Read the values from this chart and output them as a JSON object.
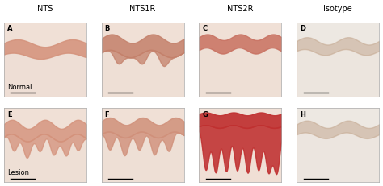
{
  "col_labels": [
    "NTS",
    "NTS1R",
    "NTS2R",
    "Isotype"
  ],
  "row_labels": [
    "Normal",
    "Lesion"
  ],
  "panel_letters": [
    [
      "A",
      "B",
      "C",
      "D"
    ],
    [
      "E",
      "F",
      "G",
      "H"
    ]
  ],
  "bg_color": "#ffffff",
  "stain_colors": {
    "A": {
      "bg": "#f0e0d6",
      "tissue": "#d4917a",
      "dermis": "#ecddd4"
    },
    "B": {
      "bg": "#f0e0d6",
      "tissue": "#c4806a",
      "dermis": "#ecddd4"
    },
    "C": {
      "bg": "#f0e0d6",
      "tissue": "#c87060",
      "dermis": "#ecddd4"
    },
    "D": {
      "bg": "#ede8e2",
      "tissue": "#c4a890",
      "dermis": "#ecddd4"
    },
    "E": {
      "bg": "#f0e0d6",
      "tissue": "#d4917a",
      "dermis": "#ecddd4"
    },
    "F": {
      "bg": "#f0e0d6",
      "tissue": "#d0907a",
      "dermis": "#ecddd4"
    },
    "G": {
      "bg": "#f0e0d6",
      "tissue": "#c03030",
      "dermis": "#f0ddd4"
    },
    "H": {
      "bg": "#ede8e2",
      "tissue": "#c4a890",
      "dermis": "#ecddd4"
    }
  },
  "label_fontsize": 7,
  "panel_letter_fontsize": 6,
  "row_label_fontsize": 6,
  "figsize": [
    4.74,
    2.31
  ],
  "dpi": 100
}
